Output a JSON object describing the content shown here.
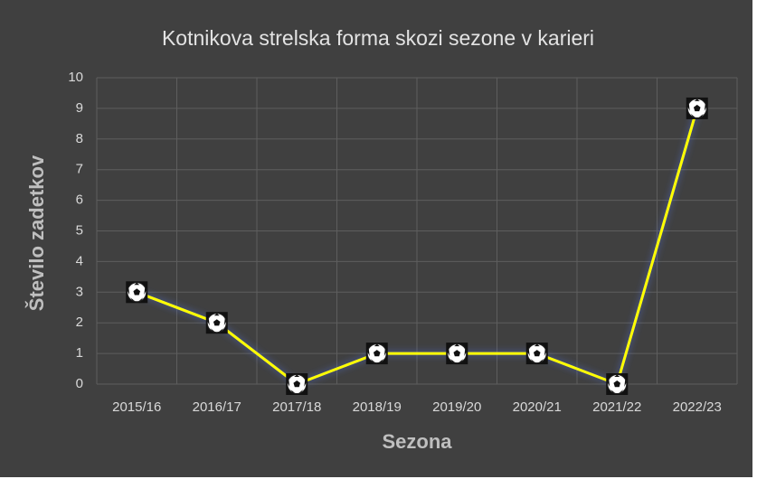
{
  "chart_data": {
    "type": "line",
    "title": "Kotnikova strelska forma skozi sezone v karieri",
    "x_label": "Sezona",
    "y_label": "Število zadetkov",
    "categories": [
      "2015/16",
      "2016/17",
      "2017/18",
      "2018/19",
      "2019/20",
      "2020/21",
      "2021/22",
      "2022/23"
    ],
    "values": [
      3,
      2,
      0,
      1,
      1,
      1,
      0,
      9
    ],
    "color": "#ffff00",
    "ylim": [
      0,
      10
    ],
    "yticks": [
      0,
      1,
      2,
      3,
      4,
      5,
      6,
      7,
      8,
      9,
      10
    ],
    "grid": true
  }
}
